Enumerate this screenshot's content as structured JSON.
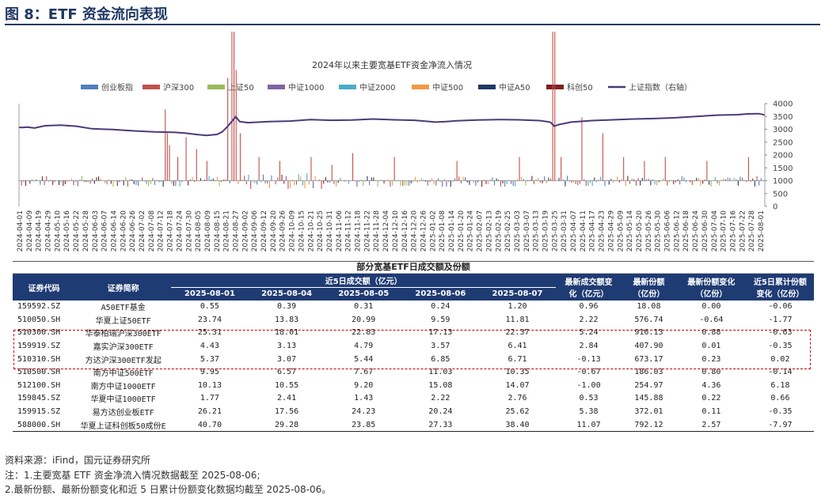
{
  "figure": {
    "title": "图 8：ETF 资金流向表现"
  },
  "chart_data": {
    "type": "bar+line",
    "title": "2024年以来主要宽基ETF资金净流入情况",
    "legend_position": "top",
    "y_left": {
      "ticks": [],
      "range": [
        -400,
        900
      ]
    },
    "y_right": {
      "ticks": [
        "0",
        "500",
        "1000",
        "1500",
        "2000",
        "2500",
        "3000",
        "3500",
        "4000"
      ],
      "range": [
        0,
        4000
      ]
    },
    "x_ticks": [
      "2024-04-01",
      "2024-04-09",
      "2024-04-19",
      "2024-04-29",
      "2024-05-10",
      "2024-05-16",
      "2024-05-22",
      "2024-05-28",
      "2024-06-03",
      "2024-06-07",
      "2024-06-14",
      "2024-06-20",
      "2024-06-26",
      "2024-07-02",
      "2024-07-08",
      "2024-07-12",
      "2024-07-18",
      "2024-07-24",
      "2024-07-30",
      "2024-08-05",
      "2024-08-09",
      "2024-08-15",
      "2024-08-21",
      "2024-08-27",
      "2024-09-02",
      "2024-09-06",
      "2024-09-12",
      "2024-09-20",
      "2024-09-26",
      "2024-10-09",
      "2024-10-15",
      "2024-10-21",
      "2024-10-25",
      "2024-10-31",
      "2024-11-06",
      "2024-11-12",
      "2024-11-18",
      "2024-11-22",
      "2024-11-28",
      "2024-12-04",
      "2024-12-10",
      "2024-12-16",
      "2024-12-20",
      "2024-12-26",
      "2025-01-02",
      "2025-01-08",
      "2025-01-14",
      "2025-01-20",
      "2025-01-24",
      "2025-02-07",
      "2025-02-13",
      "2025-02-19",
      "2025-02-25",
      "2025-03-03",
      "2025-03-07",
      "2025-03-13",
      "2025-03-19",
      "2025-03-25",
      "2025-03-31",
      "2025-04-07",
      "2025-04-11",
      "2025-04-17",
      "2025-04-23",
      "2025-04-29",
      "2025-05-09",
      "2025-05-14",
      "2025-05-20",
      "2025-05-26",
      "2025-05-30",
      "2025-06-06",
      "2025-06-12",
      "2025-06-18",
      "2025-06-24",
      "2025-06-30",
      "2025-07-04",
      "2025-07-10",
      "2025-07-16",
      "2025-07-22",
      "2025-07-28",
      "2025-08-01"
    ],
    "series": [
      {
        "name": "创业板指",
        "color": "#4f81bd"
      },
      {
        "name": "沪深300",
        "color": "#c0504d"
      },
      {
        "name": "上证50",
        "color": "#9bbb59"
      },
      {
        "name": "中证1000",
        "color": "#8064a2"
      },
      {
        "name": "中证2000",
        "color": "#4bacc6"
      },
      {
        "name": "中证500",
        "color": "#f79646"
      },
      {
        "name": "中证A50",
        "color": "#1f3864"
      },
      {
        "name": "科创50",
        "color": "#7f1f1f"
      },
      {
        "name": "上证指数（右轴）",
        "color": "#4b3a7a",
        "axis": "right",
        "points": [
          [
            0,
            3078
          ],
          [
            3,
            3070
          ],
          [
            8,
            3085
          ],
          [
            15,
            3050
          ],
          [
            25,
            3140
          ],
          [
            40,
            3160
          ],
          [
            55,
            3120
          ],
          [
            70,
            3020
          ],
          [
            90,
            2990
          ],
          [
            110,
            2940
          ],
          [
            130,
            2900
          ],
          [
            150,
            2880
          ],
          [
            160,
            2850
          ],
          [
            170,
            2800
          ],
          [
            180,
            2760
          ],
          [
            190,
            2800
          ],
          [
            195,
            2900
          ],
          [
            200,
            3100
          ],
          [
            205,
            3340
          ],
          [
            208,
            3490
          ],
          [
            212,
            3300
          ],
          [
            220,
            3260
          ],
          [
            240,
            3300
          ],
          [
            260,
            3320
          ],
          [
            280,
            3380
          ],
          [
            300,
            3350
          ],
          [
            320,
            3360
          ],
          [
            340,
            3400
          ],
          [
            360,
            3370
          ],
          [
            380,
            3350
          ],
          [
            400,
            3280
          ],
          [
            410,
            3300
          ],
          [
            420,
            3330
          ],
          [
            440,
            3360
          ],
          [
            460,
            3380
          ],
          [
            480,
            3370
          ],
          [
            500,
            3340
          ],
          [
            510,
            3280
          ],
          [
            514,
            3120
          ],
          [
            518,
            3180
          ],
          [
            530,
            3280
          ],
          [
            550,
            3340
          ],
          [
            570,
            3370
          ],
          [
            590,
            3400
          ],
          [
            610,
            3420
          ],
          [
            630,
            3450
          ],
          [
            650,
            3500
          ],
          [
            670,
            3550
          ],
          [
            690,
            3570
          ],
          [
            700,
            3600
          ],
          [
            710,
            3610
          ],
          [
            716,
            3560
          ]
        ]
      }
    ]
  },
  "table": {
    "caption": "部分宽基ETF日成交额及份额",
    "headers": {
      "code": "证券代码",
      "name": "证券简称",
      "turnover_group": "近5日成交额（亿元）",
      "dates": [
        "2025-08-01",
        "2025-08-04",
        "2025-08-05",
        "2025-08-06",
        "2025-08-07"
      ],
      "latest_change_1": "最新成交额变",
      "latest_change_2": "化（亿元）",
      "latest_shares_1": "最新份额",
      "latest_shares_2": "（亿份）",
      "share_change_1": "最新份额变化",
      "share_change_2": "（亿份）",
      "cum_change_1": "近5日累计份额",
      "cum_change_2": "变化（亿份）"
    },
    "rows": [
      [
        "159592.SZ",
        "A50ETF基金",
        "0.55",
        "0.39",
        "0.31",
        "0.24",
        "1.20",
        "0.96",
        "18.08",
        "0.00",
        "-0.06"
      ],
      [
        "510050.SH",
        "华夏上证50ETF",
        "23.74",
        "13.83",
        "20.99",
        "9.59",
        "11.81",
        "2.22",
        "576.74",
        "-0.64",
        "-1.77"
      ],
      [
        "510300.SH",
        "华泰柏瑞沪深300ETF",
        "25.31",
        "18.01",
        "22.83",
        "17.13",
        "22.37",
        "5.24",
        "916.13",
        "0.88",
        "-0.63"
      ],
      [
        "159919.SZ",
        "嘉实沪深300ETF",
        "4.43",
        "3.13",
        "4.79",
        "3.57",
        "6.41",
        "2.84",
        "407.90",
        "0.01",
        "-0.35"
      ],
      [
        "510310.SH",
        "方达沪深300ETF发起",
        "5.37",
        "3.07",
        "5.44",
        "6.85",
        "6.71",
        "-0.13",
        "673.17",
        "0.23",
        "0.02"
      ],
      [
        "510500.SH",
        "南方中证500ETF",
        "9.95",
        "6.57",
        "7.67",
        "11.03",
        "10.35",
        "-0.67",
        "186.03",
        "0.80",
        "-0.14"
      ],
      [
        "512100.SH",
        "南方中证1000ETF",
        "10.13",
        "10.55",
        "9.20",
        "15.08",
        "14.07",
        "-1.00",
        "254.97",
        "4.36",
        "6.18"
      ],
      [
        "159845.SZ",
        "华夏中证1000ETF",
        "1.77",
        "2.41",
        "1.43",
        "2.22",
        "2.76",
        "0.53",
        "145.88",
        "0.22",
        "0.66"
      ],
      [
        "159915.SZ",
        "易方达创业板ETF",
        "26.21",
        "17.56",
        "24.23",
        "20.24",
        "25.62",
        "5.38",
        "372.01",
        "0.11",
        "-0.35"
      ],
      [
        "588000.SH",
        "华夏上证科创板50成份E",
        "40.70",
        "29.28",
        "23.85",
        "27.33",
        "38.40",
        "11.07",
        "792.12",
        "2.57",
        "-7.97"
      ]
    ]
  },
  "notes": {
    "source": "资料来源：iFind，国元证券研究所",
    "note1": "注：1.主要宽基 ETF 资金净流入情况数据截至 2025-08-06;",
    "note2": "2.最新份额、最新份额变化和近 5 日累计份额变化数据均截至 2025-08-06。"
  }
}
